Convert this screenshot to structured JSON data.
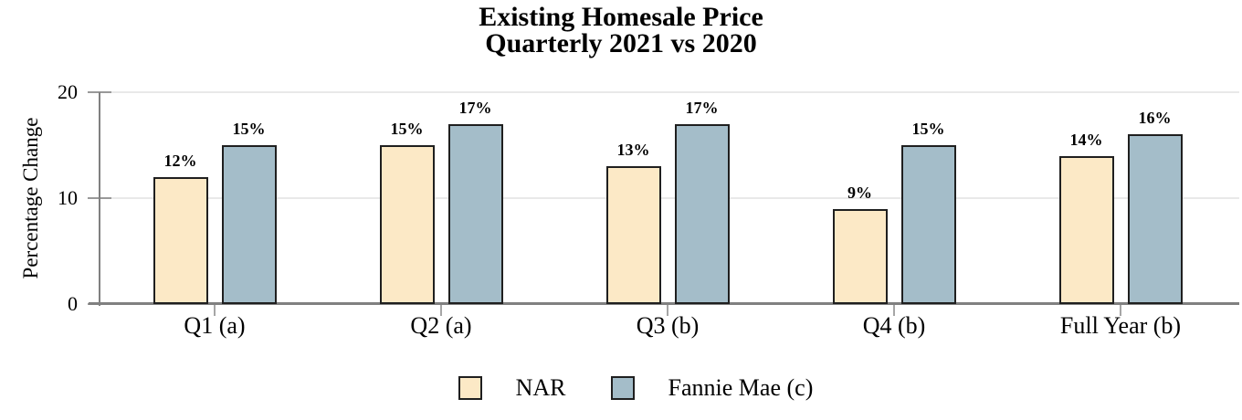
{
  "title": {
    "line1": "Existing Homesale Price",
    "line2": "Quarterly 2021 vs 2020"
  },
  "chart_data": {
    "type": "bar",
    "title": "Existing Homesale Price Quarterly 2021 vs 2020",
    "categories": [
      "Q1 (a)",
      "Q2 (a)",
      "Q3 (b)",
      "Q4 (b)",
      "Full Year (b)"
    ],
    "series": [
      {
        "name": "NAR",
        "values": [
          12,
          15,
          13,
          9,
          14
        ],
        "data_labels": [
          "12%",
          "15%",
          "13%",
          "9%",
          "14%"
        ],
        "fill": "#FCE9C6",
        "stroke": "#1F1F1F"
      },
      {
        "name": "Fannie Mae (c)",
        "values": [
          15,
          17,
          17,
          15,
          16
        ],
        "data_labels": [
          "15%",
          "17%",
          "17%",
          "15%",
          "16%"
        ],
        "fill": "#A4BDC9",
        "stroke": "#1F1F1F"
      }
    ],
    "xlabel": "",
    "ylabel": "Percentage Change",
    "ylim": [
      0,
      20
    ],
    "yticks": [
      0,
      10,
      20
    ],
    "grid": true,
    "legend_position": "bottom"
  },
  "colors": {
    "axis": "#808080",
    "gridline": "#E9E9E9",
    "y_tick": "#999999",
    "category_tick": "#A6A6A6",
    "background": "#FFFFFF",
    "text": "#000000"
  }
}
